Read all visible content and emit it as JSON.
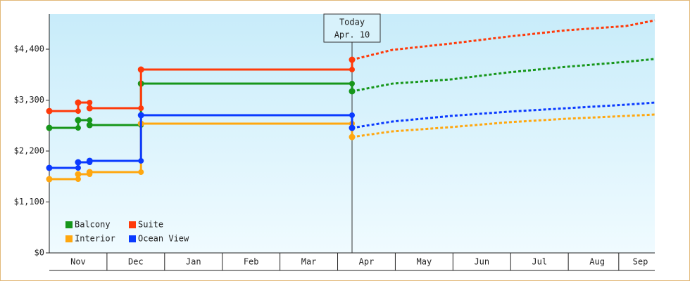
{
  "chart_data": {
    "type": "line",
    "x": [
      0,
      0.5,
      0.7,
      1.59,
      5.25,
      5.95,
      6.96,
      7.96,
      8.97,
      10.0,
      10.5
    ],
    "today_index": 4,
    "annotation": {
      "x": 5.25,
      "lines": [
        "Today",
        "Apr. 10"
      ]
    },
    "series": [
      {
        "name": "Balcony",
        "color": "#16961a",
        "values": [
          2700,
          2867,
          2761,
          3656,
          3490,
          3656,
          3747,
          3899,
          4020,
          4127,
          4188
        ]
      },
      {
        "name": "Suite",
        "color": "#ff3a0a",
        "values": [
          3064,
          3247,
          3125,
          3960,
          4172,
          4385,
          4521,
          4673,
          4809,
          4900,
          5022
        ]
      },
      {
        "name": "Interior",
        "color": "#ffa70f",
        "values": [
          1593,
          1699,
          1745,
          2792,
          2503,
          2625,
          2716,
          2822,
          2898,
          2958,
          2989
        ]
      },
      {
        "name": "Ocean View",
        "color": "#0a3aff",
        "values": [
          1836,
          1957,
          1988,
          2974,
          2700,
          2837,
          2958,
          3050,
          3125,
          3201,
          3247
        ]
      }
    ],
    "xlim": [
      0,
      10.5
    ],
    "xticks": [
      {
        "value": 0.5,
        "label": "Nov"
      },
      {
        "value": 1.5,
        "label": "Dec"
      },
      {
        "value": 2.5,
        "label": "Jan"
      },
      {
        "value": 3.5,
        "label": "Feb"
      },
      {
        "value": 4.5,
        "label": "Mar"
      },
      {
        "value": 5.5,
        "label": "Apr"
      },
      {
        "value": 6.5,
        "label": "May"
      },
      {
        "value": 7.5,
        "label": "Jun"
      },
      {
        "value": 8.5,
        "label": "Jul"
      },
      {
        "value": 9.5,
        "label": "Aug"
      },
      {
        "value": 10.25,
        "label": "Sep"
      }
    ],
    "ylim": [
      0,
      5159
    ],
    "yticks": [
      {
        "value": 0,
        "label": "$0"
      },
      {
        "value": 1100,
        "label": "$1,100"
      },
      {
        "value": 2200,
        "label": "$2,200"
      },
      {
        "value": 3300,
        "label": "$3,300"
      },
      {
        "value": 4400,
        "label": "$4,400"
      }
    ],
    "legend": "bottom-left"
  }
}
